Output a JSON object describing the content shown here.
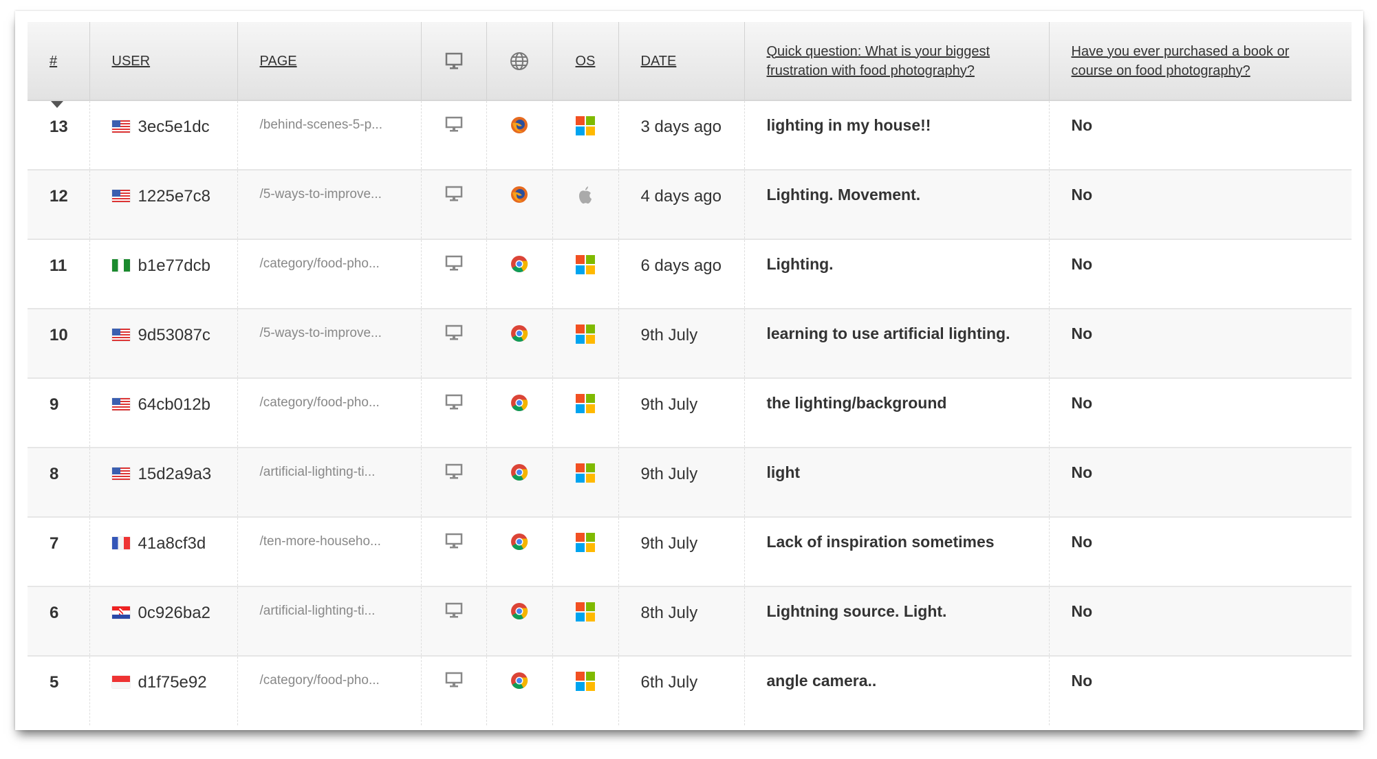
{
  "table": {
    "headers": {
      "num": "#",
      "user": "USER",
      "page": "PAGE",
      "device_icon": "desktop-icon",
      "browser_icon": "globe-icon",
      "os": "OS",
      "date": "DATE",
      "q1": "Quick question: What is your biggest frustration with food photography?",
      "q2": "Have you ever purchased a book or course on food photography?"
    },
    "sort": {
      "column": "#",
      "direction": "descending"
    },
    "rows": [
      {
        "num": "13",
        "flag": "us",
        "user": "3ec5e1dc",
        "page": "/behind-scenes-5-p...",
        "device": "desktop",
        "browser": "firefox",
        "os": "windows",
        "date": "3 days ago",
        "q1": "lighting in my house!!",
        "q2": "No"
      },
      {
        "num": "12",
        "flag": "us",
        "user": "1225e7c8",
        "page": "/5-ways-to-improve...",
        "device": "desktop",
        "browser": "firefox",
        "os": "apple",
        "date": "4 days ago",
        "q1": "Lighting. Movement.",
        "q2": "No"
      },
      {
        "num": "11",
        "flag": "ng",
        "user": "b1e77dcb",
        "page": "/category/food-pho...",
        "device": "desktop",
        "browser": "chrome",
        "os": "windows",
        "date": "6 days ago",
        "q1": "Lighting.",
        "q2": "No"
      },
      {
        "num": "10",
        "flag": "us",
        "user": "9d53087c",
        "page": "/5-ways-to-improve...",
        "device": "desktop",
        "browser": "chrome",
        "os": "windows",
        "date": "9th July",
        "q1": "learning to use artificial lighting.",
        "q2": "No"
      },
      {
        "num": "9",
        "flag": "us",
        "user": "64cb012b",
        "page": "/category/food-pho...",
        "device": "desktop",
        "browser": "chrome",
        "os": "windows",
        "date": "9th July",
        "q1": "the lighting/background",
        "q2": "No"
      },
      {
        "num": "8",
        "flag": "us",
        "user": "15d2a9a3",
        "page": "/artificial-lighting-ti...",
        "device": "desktop",
        "browser": "chrome",
        "os": "windows",
        "date": "9th July",
        "q1": "light",
        "q2": "No"
      },
      {
        "num": "7",
        "flag": "fr",
        "user": "41a8cf3d",
        "page": "/ten-more-househo...",
        "device": "desktop",
        "browser": "chrome",
        "os": "windows",
        "date": "9th July",
        "q1": "Lack of inspiration sometimes",
        "q2": "No"
      },
      {
        "num": "6",
        "flag": "hr",
        "user": "0c926ba2",
        "page": "/artificial-lighting-ti...",
        "device": "desktop",
        "browser": "chrome",
        "os": "windows",
        "date": "8th July",
        "q1": "Lightning source. Light.",
        "q2": "No"
      },
      {
        "num": "5",
        "flag": "id",
        "user": "d1f75e92",
        "page": "/category/food-pho...",
        "device": "desktop",
        "browser": "chrome",
        "os": "windows",
        "date": "6th July",
        "q1": "angle camera..",
        "q2": "No"
      }
    ]
  }
}
